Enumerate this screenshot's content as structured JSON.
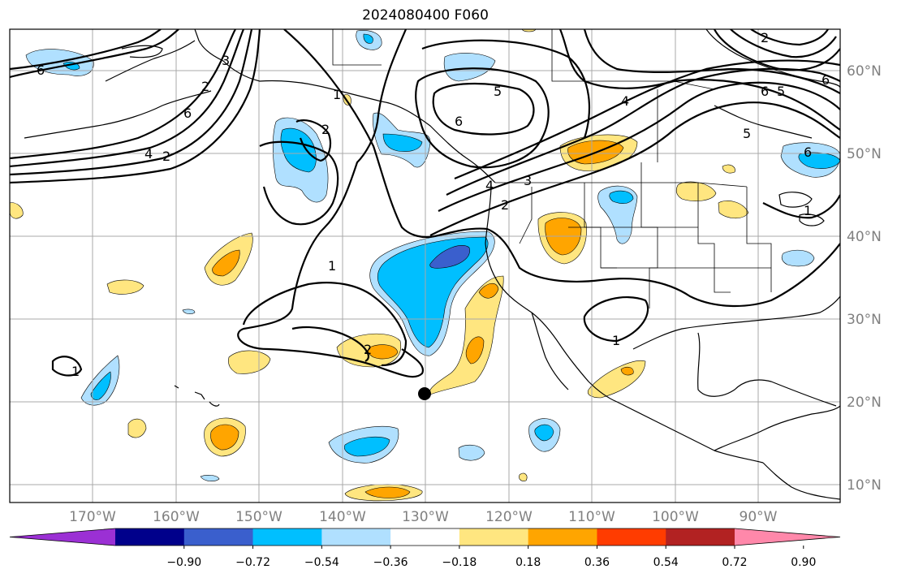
{
  "title": "2024080400 F060",
  "lat_labels": [
    "60°N",
    "50°N",
    "40°N",
    "30°N",
    "20°N",
    "10°N"
  ],
  "lon_labels": [
    "170°W",
    "160°W",
    "150°W",
    "140°W",
    "130°W",
    "120°W",
    "110°W",
    "100°W",
    "90°W"
  ],
  "colorbar": {
    "colors": [
      "#9b30d4",
      "#00008b",
      "#3a5fcd",
      "#00bfff",
      "#b0e0ff",
      "#ffffff",
      "#ffe680",
      "#ffa500",
      "#ff3c00",
      "#b22222",
      "#ff88aa"
    ],
    "ticks": [
      "−0.90",
      "−0.72",
      "−0.54",
      "−0.36",
      "−0.18",
      "0.18",
      "0.36",
      "0.54",
      "0.72",
      "0.90"
    ]
  },
  "contour_labels": [
    "6",
    "3",
    "6",
    "4",
    "2",
    "1",
    "2",
    "5",
    "6",
    "4",
    "5",
    "6",
    "3",
    "2",
    "1",
    "2",
    "6",
    "5",
    "4",
    "6",
    "2",
    "1",
    "2",
    "1",
    "1"
  ]
}
